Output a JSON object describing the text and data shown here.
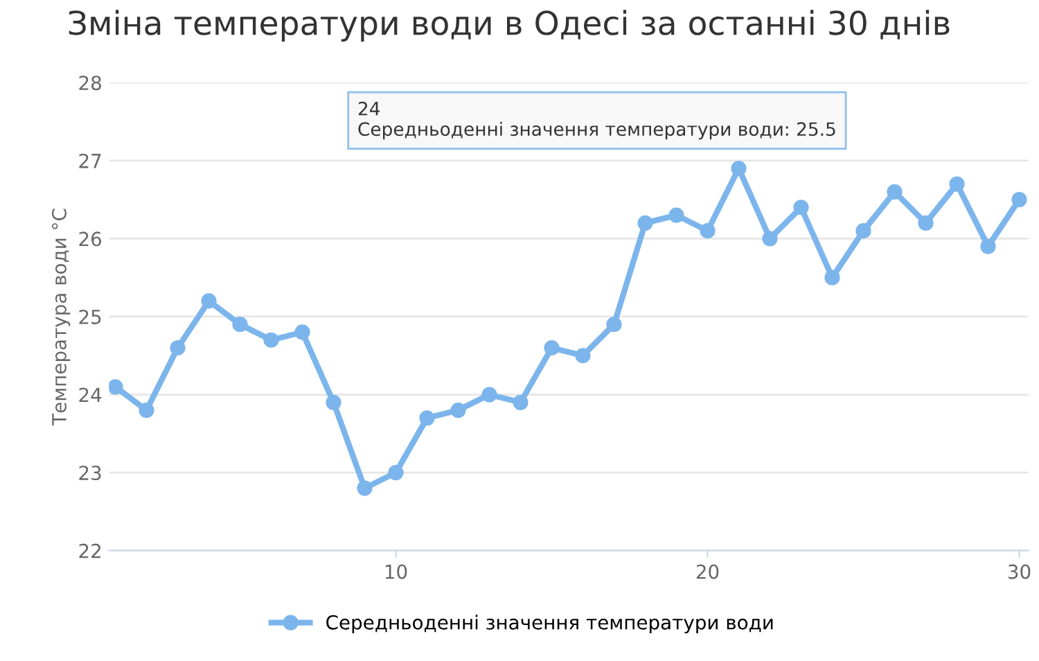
{
  "chart_data": {
    "type": "line",
    "title": "Зміна температури води в Одесі за останні 30 днів",
    "ylabel": "Температура води °C",
    "x": [
      1,
      2,
      3,
      4,
      5,
      6,
      7,
      8,
      9,
      10,
      11,
      12,
      13,
      14,
      15,
      16,
      17,
      18,
      19,
      20,
      21,
      22,
      23,
      24,
      25,
      26,
      27,
      28,
      29,
      30
    ],
    "series": [
      {
        "name": "Середньоденні значення температури води",
        "color": "#7cb5ec",
        "values": [
          24.1,
          23.8,
          24.6,
          25.2,
          24.9,
          24.7,
          24.8,
          23.9,
          22.8,
          23.0,
          23.7,
          23.8,
          24.0,
          23.9,
          24.6,
          24.5,
          24.9,
          26.2,
          26.3,
          26.1,
          26.9,
          26.0,
          26.4,
          25.5,
          26.1,
          26.6,
          26.2,
          26.7,
          25.9,
          26.5
        ]
      }
    ],
    "xlim": [
      0.8,
      30.3
    ],
    "xticks": [
      10,
      20,
      30
    ],
    "ylim": [
      22,
      28
    ],
    "yticks": [
      22,
      23,
      24,
      25,
      26,
      27,
      28
    ],
    "grid": "y",
    "legend": "bottom",
    "marker": "circle",
    "line_style": "solid",
    "annotations": [
      "24\nСередньоденні значення температури води: 25.5"
    ]
  }
}
